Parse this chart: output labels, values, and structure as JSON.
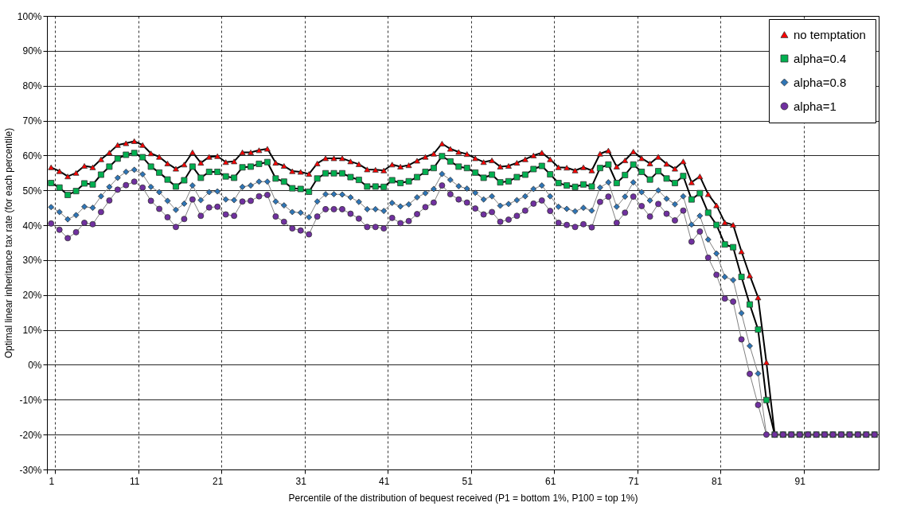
{
  "chart_data": {
    "type": "line",
    "xlabel": "Percentile of the distribution of bequest received  (P1 = bottom 1%, P100 = top 1%)",
    "ylabel": "Optimal linear inheritance tax rate (for each percentile)",
    "categories": [
      "1",
      null,
      null,
      null,
      null,
      null,
      null,
      null,
      null,
      null,
      "11",
      null,
      null,
      null,
      null,
      null,
      null,
      null,
      null,
      null,
      "21",
      null,
      null,
      null,
      null,
      null,
      null,
      null,
      null,
      null,
      "31",
      null,
      null,
      null,
      null,
      null,
      null,
      null,
      null,
      null,
      "41",
      null,
      null,
      null,
      null,
      null,
      null,
      null,
      null,
      null,
      "51",
      null,
      null,
      null,
      null,
      null,
      null,
      null,
      null,
      null,
      "61",
      null,
      null,
      null,
      null,
      null,
      null,
      null,
      null,
      null,
      "71",
      null,
      null,
      null,
      null,
      null,
      null,
      null,
      null,
      null,
      "81",
      null,
      null,
      null,
      null,
      null,
      null,
      null,
      null,
      null,
      "91",
      null,
      null,
      null,
      null,
      null,
      null,
      null,
      null,
      null
    ],
    "ylim": [
      -30,
      100
    ],
    "yticks": [
      {
        "value": -30,
        "label": "-30%"
      },
      {
        "value": -20,
        "label": "-20%"
      },
      {
        "value": -10,
        "label": "-10%"
      },
      {
        "value": 0,
        "label": "0%"
      },
      {
        "value": 10,
        "label": "10%"
      },
      {
        "value": 20,
        "label": "20%"
      },
      {
        "value": 30,
        "label": "30%"
      },
      {
        "value": 40,
        "label": "40%"
      },
      {
        "value": 50,
        "label": "50%"
      },
      {
        "value": 60,
        "label": "60%"
      },
      {
        "value": 70,
        "label": "70%"
      },
      {
        "value": 80,
        "label": "80%"
      },
      {
        "value": 90,
        "label": "90%"
      },
      {
        "value": 100,
        "label": "100%"
      }
    ],
    "grid": true,
    "legend": "top right",
    "line_style": "solid",
    "series": [
      {
        "name": "no temptation",
        "color": "#ff0000",
        "marker": "triangle",
        "values": [
          56.6,
          55.5,
          54,
          55,
          57,
          56.6,
          58.9,
          60.8,
          63,
          63.5,
          64.1,
          63,
          60.6,
          59.6,
          57.7,
          56.2,
          57.4,
          60.9,
          57.9,
          59.6,
          59.8,
          58.1,
          58.3,
          60.9,
          60.9,
          61.5,
          61.9,
          57.9,
          57,
          55.5,
          55.3,
          54.7,
          57.7,
          59.2,
          59.2,
          59.2,
          58.3,
          57.5,
          56,
          55.9,
          55.7,
          57.4,
          56.8,
          57.2,
          58.5,
          59.6,
          60.5,
          63.4,
          61.9,
          61,
          60.4,
          59.2,
          58.1,
          58.6,
          56.8,
          57,
          57.9,
          58.9,
          60,
          60.8,
          58.9,
          56.6,
          56.5,
          55.7,
          56.6,
          55.7,
          60.5,
          61.4,
          56.8,
          58.6,
          61.1,
          59.2,
          57.7,
          59.6,
          57.6,
          56.2,
          58.3,
          52.3,
          54,
          48.9,
          45.7,
          40.8,
          40.1,
          32.5,
          25.6,
          19.3,
          0.7,
          -20,
          -20,
          -20,
          -20,
          -20,
          -20,
          -20,
          -20,
          -20,
          -20,
          -20,
          -20,
          -20
        ]
      },
      {
        "name": "alpha=0.4",
        "color": "#00b050",
        "marker": "square",
        "values": [
          52.1,
          50.8,
          48.7,
          49.8,
          52,
          51.7,
          54.5,
          56.8,
          59.1,
          60.2,
          60.7,
          59.5,
          56.8,
          55.1,
          53.1,
          51.1,
          52.9,
          56.8,
          53.6,
          55.3,
          55.3,
          54,
          53.6,
          56.6,
          56.8,
          57.6,
          58.1,
          53.4,
          52.5,
          50.6,
          50.4,
          49.6,
          53.4,
          54.9,
          54.9,
          54.9,
          53.8,
          53,
          51.1,
          51.1,
          51,
          52.9,
          52.1,
          52.6,
          53.8,
          55.3,
          56.4,
          59.8,
          58.3,
          56.8,
          56.4,
          55.1,
          53.6,
          54.5,
          52.3,
          52.6,
          53.8,
          54.5,
          56.1,
          57,
          54.6,
          52.1,
          51.4,
          51,
          51.7,
          51.1,
          56.4,
          57.4,
          52.1,
          54.4,
          57.4,
          55.3,
          53.1,
          55.5,
          53.4,
          52.1,
          54.1,
          47.4,
          49.2,
          43.6,
          40.1,
          34.5,
          33.7,
          25.2,
          17.3,
          10.1,
          -10.1,
          -20,
          -20,
          -20,
          -20,
          -20,
          -20,
          -20,
          -20,
          -20,
          -20,
          -20,
          -20,
          -20
        ]
      },
      {
        "name": "alpha=0.8",
        "color": "#2e75b6",
        "marker": "diamond",
        "values": [
          45.2,
          43.8,
          41.7,
          42.9,
          45.3,
          45,
          48.3,
          51,
          53.6,
          55.3,
          55.9,
          54.6,
          51,
          49.5,
          47,
          44.4,
          46.2,
          51.4,
          47.2,
          49.5,
          49.7,
          47.4,
          47.2,
          51,
          51.4,
          52.5,
          52.5,
          46.8,
          45.7,
          43.8,
          43.6,
          42.3,
          46.8,
          48.9,
          48.9,
          48.8,
          48,
          46.7,
          44.6,
          44.6,
          44.1,
          46.4,
          45.4,
          46,
          48,
          49.2,
          50.4,
          54.7,
          53,
          51.2,
          50.5,
          49.3,
          47.4,
          48.3,
          45.6,
          46.1,
          47.2,
          48.3,
          50.4,
          51.4,
          48.3,
          45.3,
          44.7,
          44,
          45,
          44.2,
          50.8,
          52.3,
          45.3,
          48.2,
          52.3,
          49.5,
          47.1,
          50,
          47.6,
          46,
          48.3,
          40.2,
          42.7,
          35.9,
          31.9,
          25.2,
          24.3,
          14.8,
          5.4,
          -2.5,
          -20,
          -20,
          -20,
          -20,
          -20,
          -20,
          -20,
          -20,
          -20,
          -20,
          -20,
          -20,
          -20,
          -20
        ]
      },
      {
        "name": "alpha=1",
        "color": "#7030a0",
        "marker": "circle",
        "values": [
          40.5,
          38.7,
          36.3,
          38,
          40.7,
          40.3,
          43.8,
          47.1,
          50.2,
          51.5,
          52.5,
          50.8,
          47,
          44.7,
          42.3,
          39.5,
          41.8,
          47.4,
          42.7,
          45.1,
          45.3,
          43.1,
          42.7,
          46.8,
          47,
          48.3,
          48.7,
          42.5,
          41,
          39.1,
          38.5,
          37.4,
          42.5,
          44.6,
          44.6,
          44.6,
          43.3,
          41.9,
          39.5,
          39.5,
          39.1,
          42.1,
          40.6,
          41.2,
          43.2,
          45.2,
          46.5,
          51.4,
          48.9,
          47.4,
          46.5,
          44.8,
          43.1,
          43.8,
          41,
          41.6,
          42.7,
          44.2,
          46.2,
          47.1,
          44.1,
          40.7,
          40.1,
          39.5,
          40.3,
          39.4,
          46.7,
          48.2,
          40.7,
          43.6,
          48.2,
          45.5,
          42.5,
          46.1,
          43.3,
          41.4,
          44.2,
          35.3,
          38.2,
          30.7,
          25.8,
          19,
          18.1,
          7.3,
          -2.6,
          -11.5,
          -20,
          -20,
          -20,
          -20,
          -20,
          -20,
          -20,
          -20,
          -20,
          -20,
          -20,
          -20,
          -20,
          -20
        ]
      }
    ]
  }
}
